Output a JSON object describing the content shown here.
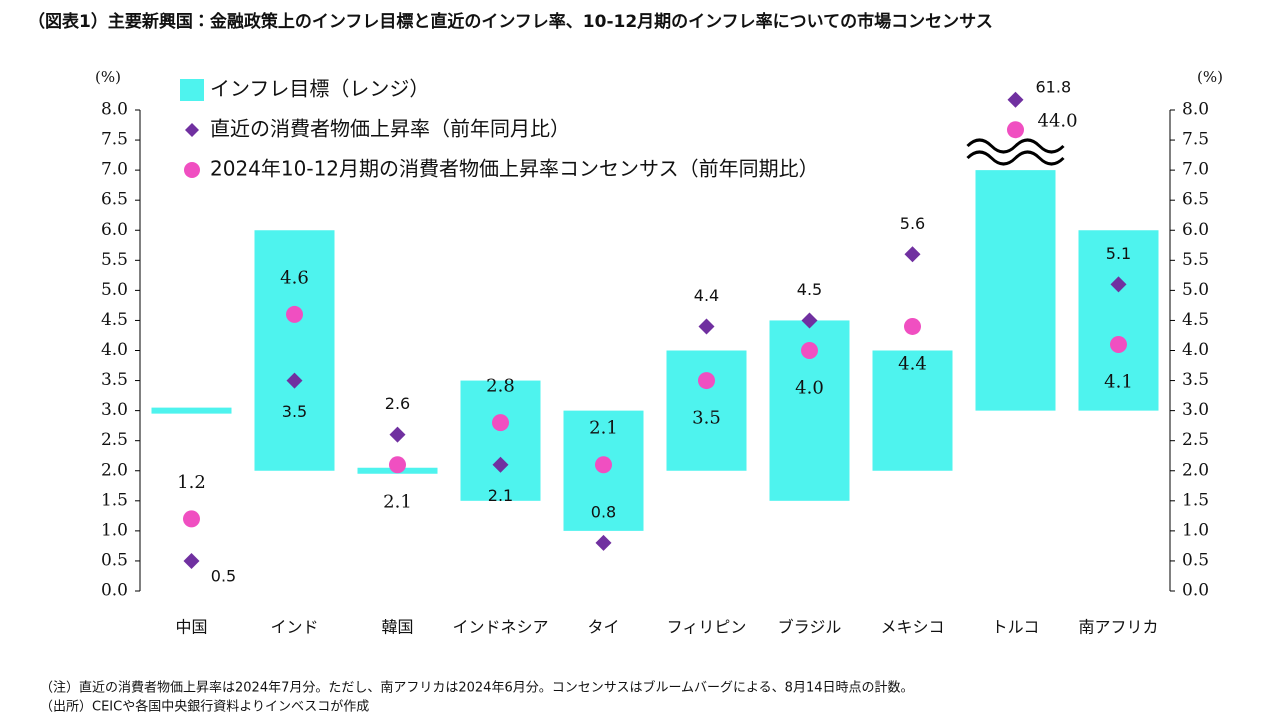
{
  "chart_data": {
    "type": "range-bar-dots",
    "title": "（図表1）主要新興国：金融政策上のインフレ目標と直近のインフレ率、10-12月期のインフレ率についての市場コンセンサス",
    "y_unit": "(%)",
    "y2_unit": "(%)",
    "notes": [
      "（注）直近の消費者物価上昇率は2024年7月分。ただし、南アフリカは2024年6月分。コンセンサスはブルームバーグによる、8月14日時点の計数。",
      "（出所）CEICや各国中央銀行資料よりインベスコが作成"
    ],
    "categories": [
      "中国",
      "インド",
      "韓国",
      "インドネシア",
      "タイ",
      "フィリピン",
      "ブラジル",
      "メキシコ",
      "トルコ",
      "南アフリカ"
    ],
    "ylim": [
      0,
      8
    ],
    "yticks": [
      {
        "value": 0,
        "label": "0.0"
      },
      {
        "value": 0.5,
        "label": "0.5"
      },
      {
        "value": 1,
        "label": "1.0"
      },
      {
        "value": 1.5,
        "label": "1.5"
      },
      {
        "value": 2,
        "label": "2.0"
      },
      {
        "value": 2.5,
        "label": "2.5"
      },
      {
        "value": 3,
        "label": "3.0"
      },
      {
        "value": 3.5,
        "label": "3.5"
      },
      {
        "value": 4,
        "label": "4.0"
      },
      {
        "value": 4.5,
        "label": "4.5"
      },
      {
        "value": 5,
        "label": "5.0"
      },
      {
        "value": 5.5,
        "label": "5.5"
      },
      {
        "value": 6,
        "label": "6.0"
      },
      {
        "value": 6.5,
        "label": "6.5"
      },
      {
        "value": 7,
        "label": "7.0"
      },
      {
        "value": 7.5,
        "label": "7.5"
      },
      {
        "value": 8,
        "label": "8.0"
      }
    ],
    "y2lim": [
      0,
      8
    ],
    "y2ticks": [
      {
        "value": 0,
        "label": "0.0"
      },
      {
        "value": 0.5,
        "label": "0.5"
      },
      {
        "value": 1,
        "label": "1.0"
      },
      {
        "value": 1.5,
        "label": "1.5"
      },
      {
        "value": 2,
        "label": "2.0"
      },
      {
        "value": 2.5,
        "label": "2.5"
      },
      {
        "value": 3,
        "label": "3.0"
      },
      {
        "value": 3.5,
        "label": "3.5"
      },
      {
        "value": 4,
        "label": "4.0"
      },
      {
        "value": 4.5,
        "label": "4.5"
      },
      {
        "value": 5,
        "label": "5.0"
      },
      {
        "value": 5.5,
        "label": "5.5"
      },
      {
        "value": 6,
        "label": "6.0"
      },
      {
        "value": 6.5,
        "label": "6.5"
      },
      {
        "value": 7,
        "label": "7.0"
      },
      {
        "value": 7.5,
        "label": "7.5"
      },
      {
        "value": 8,
        "label": "8.0"
      }
    ],
    "axis_break": true,
    "series": [
      {
        "name": "インフレ目標（レンジ）",
        "kind": "range",
        "color": "#4ef3ee",
        "low": [
          3,
          2,
          2,
          1.5,
          1,
          2,
          1.5,
          2,
          3,
          3
        ],
        "high": [
          3,
          6,
          2,
          3.5,
          3,
          4,
          4.5,
          4,
          7,
          6
        ]
      },
      {
        "name": "直近の消費者物価上昇率（前年同月比）",
        "kind": "diamond",
        "color": "#7030a0",
        "values": [
          0.5,
          3.5,
          2.6,
          2.1,
          0.8,
          4.4,
          4.5,
          5.6,
          61.8,
          5.1
        ]
      },
      {
        "name": "2024年10-12月期の消費者物価上昇率コンセンサス（前年同期比）",
        "kind": "circle",
        "color": "#f04fc1",
        "values": [
          1.2,
          4.6,
          2.1,
          2.8,
          2.1,
          3.5,
          4,
          4.4,
          44,
          4.1
        ],
        "value_labels": [
          "1.2",
          "4.6",
          "2.1",
          "2.8",
          "2.1",
          "3.5",
          "4.0",
          "4.4",
          "44.0",
          "4.1"
        ]
      }
    ]
  }
}
